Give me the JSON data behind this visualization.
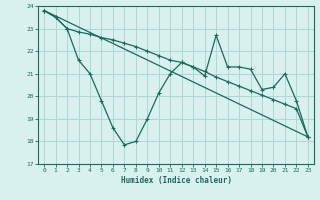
{
  "xlabel": "Humidex (Indice chaleur)",
  "bg_color": "#d8f0ee",
  "grid_color": "#aed8d4",
  "line_color": "#1a6b5a",
  "xlim": [
    -0.5,
    23.5
  ],
  "ylim": [
    17,
    24
  ],
  "xticks": [
    0,
    1,
    2,
    3,
    4,
    5,
    6,
    7,
    8,
    9,
    10,
    11,
    12,
    13,
    14,
    15,
    16,
    17,
    18,
    19,
    20,
    21,
    22,
    23
  ],
  "yticks": [
    17,
    18,
    19,
    20,
    21,
    22,
    23,
    24
  ],
  "series1_x": [
    0,
    1,
    2,
    3,
    4,
    5,
    6,
    7,
    8,
    9,
    10,
    11,
    12,
    13,
    14,
    15,
    16,
    17,
    18,
    19,
    20,
    21,
    22,
    23
  ],
  "series1_y": [
    23.8,
    23.5,
    23.0,
    21.6,
    21.0,
    19.8,
    18.6,
    17.85,
    18.0,
    19.0,
    20.15,
    21.0,
    21.5,
    21.3,
    20.9,
    22.7,
    21.3,
    21.3,
    21.2,
    20.3,
    20.4,
    21.0,
    19.8,
    18.2
  ],
  "series2_x": [
    0,
    1,
    2,
    3,
    4,
    5,
    6,
    7,
    8,
    9,
    10,
    11,
    12,
    13,
    14,
    15,
    16,
    17,
    18,
    19,
    20,
    21,
    22,
    23
  ],
  "series2_y": [
    23.8,
    23.5,
    23.0,
    22.85,
    22.75,
    22.6,
    22.5,
    22.35,
    22.2,
    22.0,
    21.8,
    21.6,
    21.5,
    21.3,
    21.1,
    20.85,
    20.65,
    20.45,
    20.25,
    20.05,
    19.85,
    19.65,
    19.45,
    18.2
  ],
  "series3_x": [
    0,
    23
  ],
  "series3_y": [
    23.8,
    18.2
  ]
}
